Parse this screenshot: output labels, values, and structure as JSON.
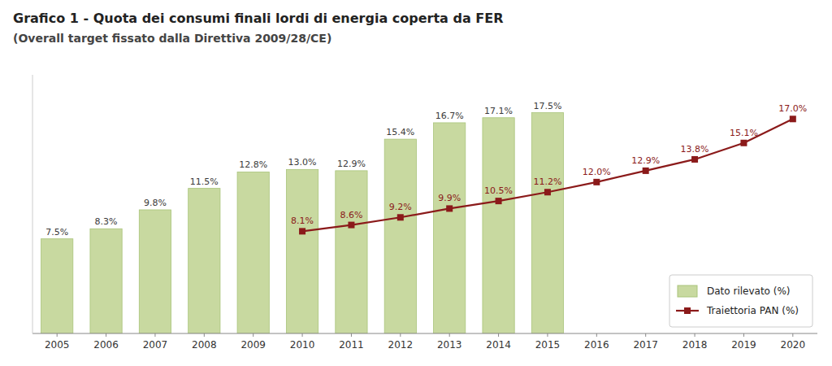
{
  "chart_data": {
    "type": "bar",
    "title": "Grafico 1 -  Quota dei consumi finali lordi di energia coperta da FER",
    "subtitle": "(Overall target fissato dalla Direttiva 2009/28/CE)",
    "categories": [
      "2005",
      "2006",
      "2007",
      "2008",
      "2009",
      "2010",
      "2011",
      "2012",
      "2013",
      "2014",
      "2015",
      "2016",
      "2017",
      "2018",
      "2019",
      "2020"
    ],
    "series": [
      {
        "name": "Dato rilevato (%)",
        "type": "bar",
        "color": "#c8d9a0",
        "values": [
          7.5,
          8.3,
          9.8,
          11.5,
          12.8,
          13.0,
          12.9,
          15.4,
          16.7,
          17.1,
          17.5,
          null,
          null,
          null,
          null,
          null
        ],
        "value_labels": [
          "7.5%",
          "8.3%",
          "9.8%",
          "11.5%",
          "12.8%",
          "13.0%",
          "12.9%",
          "15.4%",
          "16.7%",
          "17.1%",
          "17.5%",
          null,
          null,
          null,
          null,
          null
        ]
      },
      {
        "name": "Traiettoria PAN (%)",
        "type": "line",
        "color": "#8b1a1a",
        "marker": "square",
        "values": [
          null,
          null,
          null,
          null,
          null,
          8.1,
          8.6,
          9.2,
          9.9,
          10.5,
          11.2,
          12.0,
          12.9,
          13.8,
          15.1,
          17.0
        ],
        "value_labels": [
          null,
          null,
          null,
          null,
          null,
          "8.1%",
          "8.6%",
          "9.2%",
          "9.9%",
          "10.5%",
          "11.2%",
          "12.0%",
          "12.9%",
          "13.8%",
          "15.1%",
          "17.0%"
        ]
      }
    ],
    "ylim": [
      0,
      20.5
    ],
    "tick_labels": "x",
    "data_labels": true,
    "legend": "lower right",
    "grid": false
  }
}
